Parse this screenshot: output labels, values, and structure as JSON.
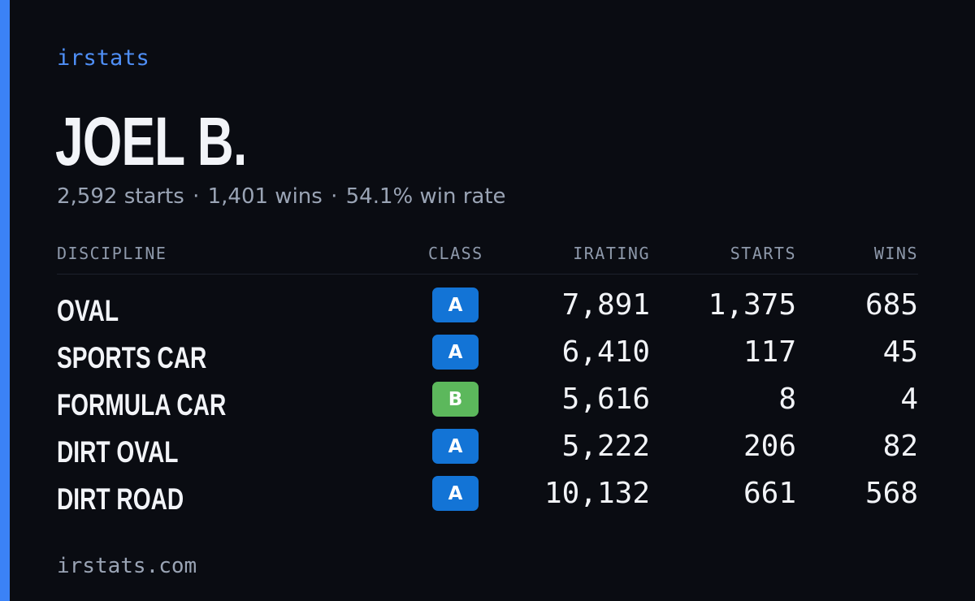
{
  "brand": "irstats",
  "player": {
    "name": "JOEL B.",
    "starts": "2,592 starts",
    "wins": "1,401 wins",
    "win_rate": "54.1% win rate",
    "separator": "·"
  },
  "table": {
    "headers": {
      "discipline": "DISCIPLINE",
      "class": "CLASS",
      "irating": "IRATING",
      "starts": "STARTS",
      "wins": "WINS"
    },
    "rows": [
      {
        "discipline": "OVAL",
        "class": "A",
        "irating": "7,891",
        "starts": "1,375",
        "wins": "685"
      },
      {
        "discipline": "SPORTS CAR",
        "class": "A",
        "irating": "6,410",
        "starts": "117",
        "wins": "45"
      },
      {
        "discipline": "FORMULA CAR",
        "class": "B",
        "irating": "5,616",
        "starts": "8",
        "wins": "4"
      },
      {
        "discipline": "DIRT OVAL",
        "class": "A",
        "irating": "5,222",
        "starts": "206",
        "wins": "82"
      },
      {
        "discipline": "DIRT ROAD",
        "class": "A",
        "irating": "10,132",
        "starts": "661",
        "wins": "568"
      }
    ]
  },
  "colors": {
    "accent": "#3b82f6",
    "class_A": "#1374d6",
    "class_B": "#5cb85c",
    "background": "#0a0c12"
  },
  "footer": "irstats.com"
}
